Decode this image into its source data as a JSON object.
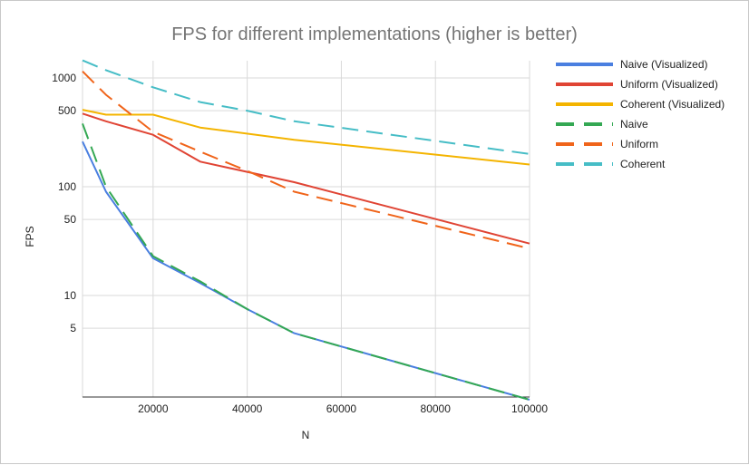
{
  "chart_data": {
    "type": "line",
    "title": "FPS for different implementations (higher is better)",
    "xlabel": "N",
    "ylabel": "FPS",
    "x_scale": "linear",
    "y_scale": "log",
    "xlim": [
      5000,
      100000
    ],
    "x_ticks": [
      20000,
      40000,
      60000,
      80000,
      100000
    ],
    "y_ticks": [
      5,
      10,
      50,
      100,
      500,
      1000
    ],
    "grid": true,
    "legend_position": "right",
    "series": [
      {
        "name": "Naive (Visualized)",
        "color": "#4a7fe0",
        "style": "solid",
        "x": [
          5000,
          10000,
          20000,
          30000,
          40000,
          50000,
          100000
        ],
        "y": [
          260,
          90,
          22,
          13,
          7.5,
          4.5,
          1.1
        ]
      },
      {
        "name": "Uniform (Visualized)",
        "color": "#e04434",
        "style": "solid",
        "x": [
          5000,
          10000,
          20000,
          30000,
          50000,
          100000
        ],
        "y": [
          470,
          400,
          300,
          170,
          110,
          30
        ]
      },
      {
        "name": "Coherent (Visualized)",
        "color": "#f4b400",
        "style": "solid",
        "x": [
          5000,
          10000,
          20000,
          30000,
          50000,
          100000
        ],
        "y": [
          510,
          460,
          460,
          350,
          270,
          160
        ]
      },
      {
        "name": "Naive",
        "color": "#34a853",
        "style": "dashed",
        "x": [
          5000,
          10000,
          20000,
          30000,
          40000,
          50000,
          100000
        ],
        "y": [
          380,
          100,
          23,
          13.5,
          7.5,
          4.5,
          1.1
        ]
      },
      {
        "name": "Uniform",
        "color": "#f0641a",
        "style": "dashed",
        "x": [
          5000,
          10000,
          20000,
          30000,
          40000,
          50000,
          100000
        ],
        "y": [
          1150,
          700,
          320,
          210,
          140,
          90,
          27
        ]
      },
      {
        "name": "Coherent",
        "color": "#46bdc6",
        "style": "dashed",
        "x": [
          5000,
          10000,
          20000,
          30000,
          40000,
          50000,
          100000
        ],
        "y": [
          1450,
          1180,
          820,
          600,
          500,
          400,
          200
        ]
      }
    ]
  }
}
